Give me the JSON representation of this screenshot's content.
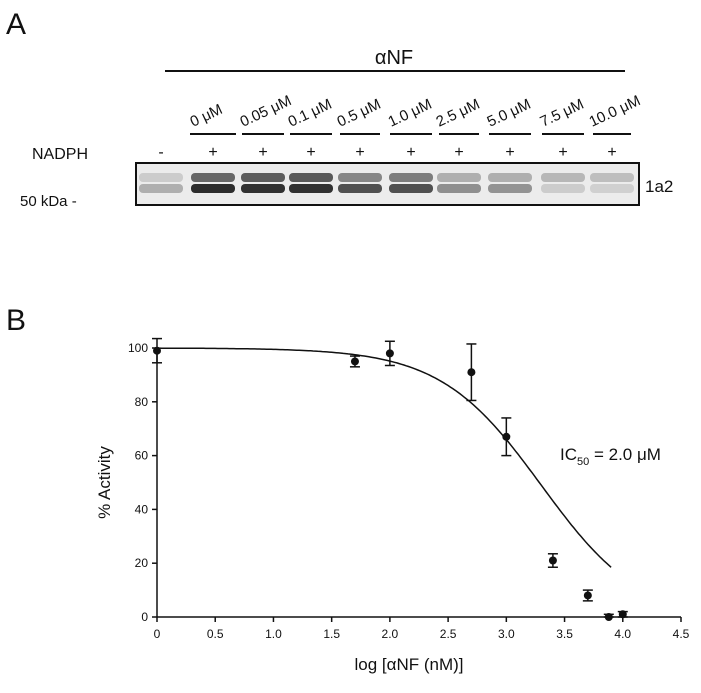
{
  "panel_a": {
    "label": "A",
    "header": "αNF",
    "lanes": [
      {
        "conc": "",
        "nadph": "-"
      },
      {
        "conc": "0 μM",
        "nadph": "+"
      },
      {
        "conc": "0.05 μM",
        "nadph": "+"
      },
      {
        "conc": "0.1 μM",
        "nadph": "+"
      },
      {
        "conc": "0.5 μM",
        "nadph": "+"
      },
      {
        "conc": "1.0 μM",
        "nadph": "+"
      },
      {
        "conc": "2.5 μM",
        "nadph": "+"
      },
      {
        "conc": "5.0 μM",
        "nadph": "+"
      },
      {
        "conc": "7.5 μM",
        "nadph": "+"
      },
      {
        "conc": "10.0 μM",
        "nadph": "+"
      }
    ],
    "row_label": "NADPH",
    "marker_label": "50 kDa -",
    "band_label": "1a2"
  },
  "panel_b": {
    "label": "B",
    "annotation": {
      "prefix": "IC",
      "sub": "50",
      "suffix": " = 2.0 μM"
    }
  },
  "chart_data": {
    "type": "scatter",
    "title": "",
    "xlabel": "log [αNF (nM)]",
    "ylabel": "% Activity",
    "xlim": [
      0,
      4.5
    ],
    "ylim": [
      0,
      100
    ],
    "xticks": [
      "0",
      "0.5",
      "1.0",
      "1.5",
      "2.0",
      "2.5",
      "3.0",
      "3.5",
      "4.0",
      "4.5"
    ],
    "yticks": [
      "0",
      "20",
      "40",
      "60",
      "80",
      "100"
    ],
    "grid": false,
    "series": [
      {
        "points": [
          {
            "x": 0.0,
            "y": 99,
            "err": 4.5
          },
          {
            "x": 1.7,
            "y": 95,
            "err": 2
          },
          {
            "x": 2.0,
            "y": 98,
            "err": 4.5
          },
          {
            "x": 2.7,
            "y": 91,
            "err": 10.5
          },
          {
            "x": 3.0,
            "y": 67,
            "err": 7
          },
          {
            "x": 3.4,
            "y": 21,
            "err": 2.5
          },
          {
            "x": 3.7,
            "y": 8,
            "err": 2
          },
          {
            "x": 3.88,
            "y": 0,
            "err": 1
          },
          {
            "x": 4.0,
            "y": 1,
            "err": 1
          }
        ]
      }
    ],
    "fit": {
      "model": "sigmoid",
      "top": 100,
      "bottom": -2,
      "log_ic50": 3.3,
      "hill": 1.0
    }
  }
}
